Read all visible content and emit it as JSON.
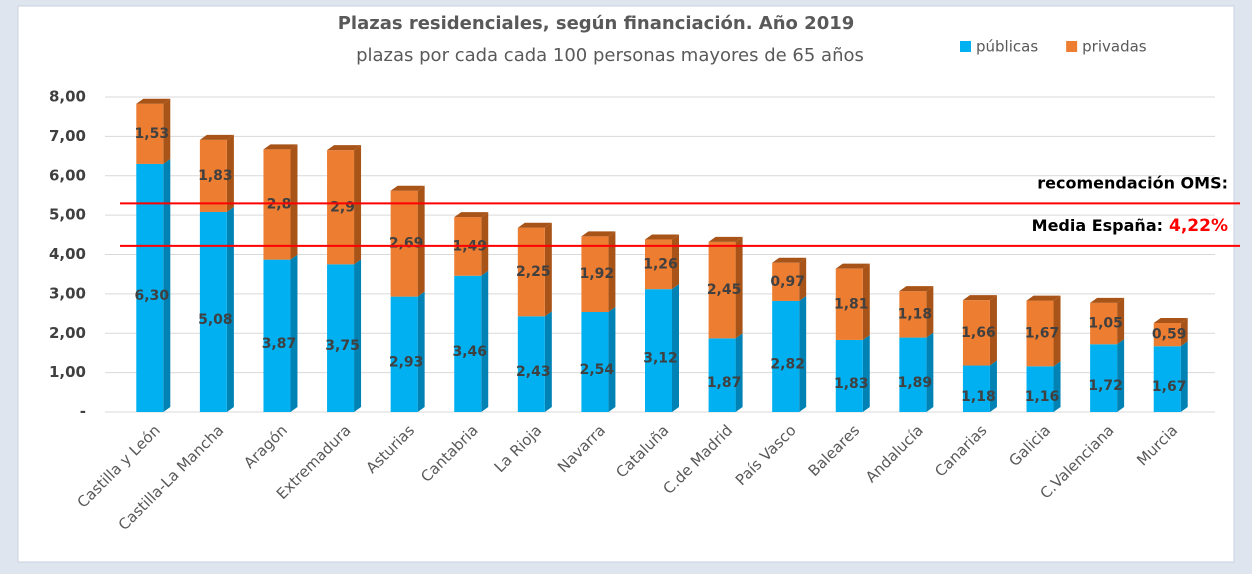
{
  "chart_data": {
    "type": "stacked_bar",
    "title": "Plazas residenciales, según financiación. Año 2019",
    "subtitle": "plazas por cada cada 100 personas mayores de 65 años",
    "categories": [
      "Castilla y León",
      "Castilla-La Mancha",
      "Aragón",
      "Extremadura",
      "Asturias",
      "Cantabria",
      "La Rioja",
      "Navarra",
      "Cataluña",
      "C.de Madrid",
      "País Vasco",
      "Baleares",
      "Andalucía",
      "Canarias",
      "Galicia",
      "C.Valenciana",
      "Murcia"
    ],
    "series": [
      {
        "name": "públicas",
        "color": "#00b0f0",
        "side_color": "#0082b4",
        "values": [
          6.3,
          5.08,
          3.87,
          3.75,
          2.93,
          3.46,
          2.43,
          2.54,
          3.12,
          1.87,
          2.82,
          1.83,
          1.89,
          1.18,
          1.16,
          1.72,
          1.67
        ],
        "value_labels": [
          "6,30",
          "5,08",
          "3,87",
          "3,75",
          "2,93",
          "3,46",
          "2,43",
          "2,54",
          "3,12",
          "1,87",
          "2,82",
          "1,83",
          "1,89",
          "1,18",
          "1,16",
          "1,72",
          "1,67"
        ]
      },
      {
        "name": "privadas",
        "color": "#ed7d31",
        "side_color": "#a85418",
        "values": [
          1.53,
          1.83,
          2.8,
          2.9,
          2.69,
          1.49,
          2.25,
          1.92,
          1.26,
          2.45,
          0.97,
          1.81,
          1.18,
          1.66,
          1.67,
          1.05,
          0.59
        ],
        "value_labels": [
          "1,53",
          "1,83",
          "2,8",
          "2,9",
          "2,69",
          "1,49",
          "2,25",
          "1,92",
          "1,26",
          "2,45",
          "0,97",
          "1,81",
          "1,18",
          "1,66",
          "1,67",
          "1,05",
          "0,59"
        ]
      }
    ],
    "ylim": [
      0,
      8
    ],
    "yticks": [
      {
        "value": 0,
        "label": "-"
      },
      {
        "value": 1,
        "label": "1,00"
      },
      {
        "value": 2,
        "label": "2,00"
      },
      {
        "value": 3,
        "label": "3,00"
      },
      {
        "value": 4,
        "label": "4,00"
      },
      {
        "value": 5,
        "label": "5,00"
      },
      {
        "value": 6,
        "label": "6,00"
      },
      {
        "value": 7,
        "label": "7,00"
      },
      {
        "value": 8,
        "label": "8,00"
      }
    ],
    "grid": true,
    "legend": "top-right",
    "reference_lines": [
      {
        "label": "recomendación OMS:",
        "value": 5.3,
        "color": "#ff0000"
      },
      {
        "label": "Media España:",
        "value": 4.22,
        "value_label": "4,22%",
        "color": "#ff0000"
      }
    ]
  }
}
